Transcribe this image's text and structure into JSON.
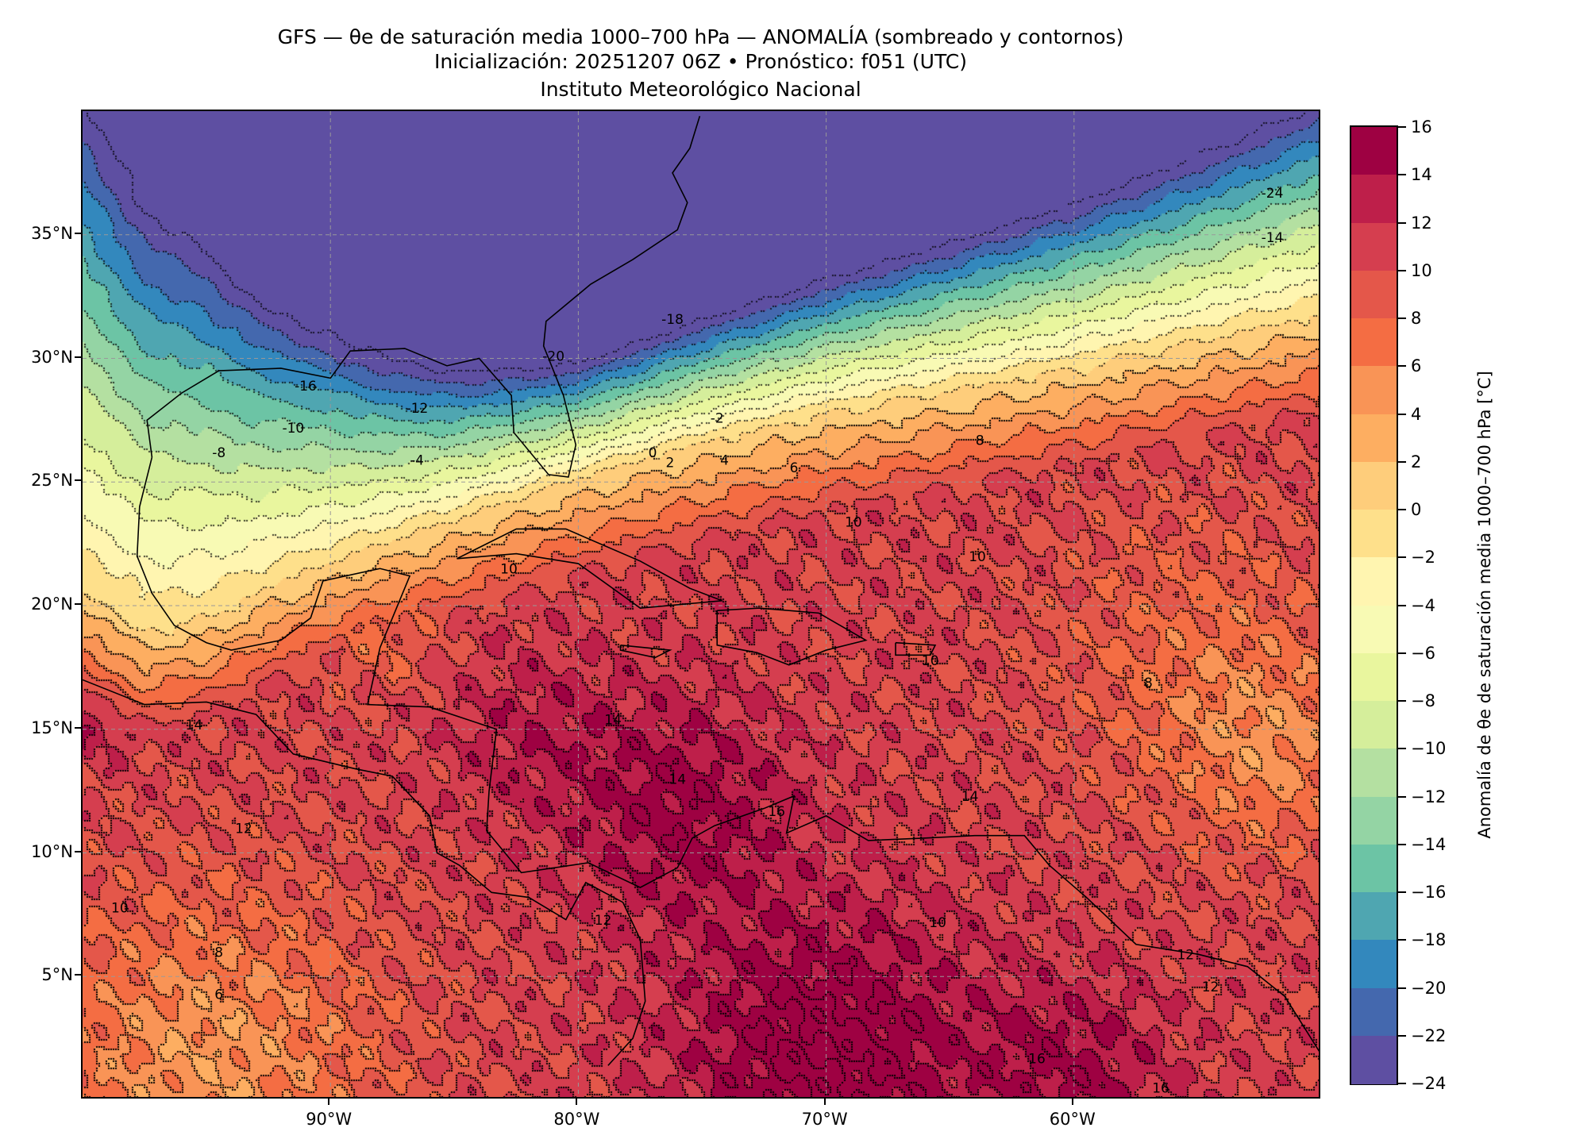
{
  "chart_data": {
    "type": "heatmap",
    "title": "GFS — θe de saturación media 1000–700 hPa — ANOMALÍA (sombreado y contornos)",
    "subtitle": "Inicialización: 20251207 06Z   •   Pronóstico: f051 (UTC)",
    "institution": "Instituto Meteorológico Nacional",
    "xlim": [
      -100,
      -50
    ],
    "ylim": [
      0,
      40
    ],
    "grid": true,
    "x_ticks": [
      {
        "value": -90,
        "label": "90°W"
      },
      {
        "value": -80,
        "label": "80°W"
      },
      {
        "value": -70,
        "label": "70°W"
      },
      {
        "value": -60,
        "label": "60°W"
      }
    ],
    "y_ticks": [
      {
        "value": 35,
        "label": "35°N"
      },
      {
        "value": 30,
        "label": "30°N"
      },
      {
        "value": 25,
        "label": "25°N"
      },
      {
        "value": 20,
        "label": "20°N"
      },
      {
        "value": 15,
        "label": "15°N"
      },
      {
        "value": 10,
        "label": "10°N"
      },
      {
        "value": 5,
        "label": "5°N"
      }
    ],
    "colorbar": {
      "label": "Anomalía de θe de saturación media 1000–700 hPa [°C]",
      "range": [
        -24,
        16
      ],
      "step": 2,
      "ticks": [
        "16",
        "14",
        "12",
        "10",
        "8",
        "6",
        "4",
        "2",
        "0",
        "−2",
        "−4",
        "−6",
        "−8",
        "−10",
        "−12",
        "−14",
        "−16",
        "−18",
        "−20",
        "−22",
        "−24"
      ],
      "colors": [
        "#9e0142",
        "#be1f4a",
        "#d53e4f",
        "#e4574a",
        "#f46d43",
        "#f99456",
        "#fdae61",
        "#fecd7b",
        "#fee08b",
        "#fff5b0",
        "#f8fab4",
        "#e9f69e",
        "#d5ee9b",
        "#b4e0a1",
        "#94d4a4",
        "#6cc4a5",
        "#4fa6b1",
        "#3388bd",
        "#4468ae",
        "#5e4fa2"
      ]
    },
    "contour_labels": [
      {
        "lon": -91,
        "lat": 28.7,
        "text": "-16"
      },
      {
        "lon": -86.5,
        "lat": 27.8,
        "text": "-12"
      },
      {
        "lon": -91.5,
        "lat": 27,
        "text": "-10"
      },
      {
        "lon": -94.5,
        "lat": 26,
        "text": "-8"
      },
      {
        "lon": -86.5,
        "lat": 25.7,
        "text": "-4"
      },
      {
        "lon": -81,
        "lat": 29.9,
        "text": "-20"
      },
      {
        "lon": -76.2,
        "lat": 31.4,
        "text": "-18"
      },
      {
        "lon": -52,
        "lat": 36.5,
        "text": "-24"
      },
      {
        "lon": -52,
        "lat": 34.7,
        "text": "-14"
      },
      {
        "lon": -74.4,
        "lat": 27.4,
        "text": "-2"
      },
      {
        "lon": -77,
        "lat": 26,
        "text": "0"
      },
      {
        "lon": -76.3,
        "lat": 25.6,
        "text": "2"
      },
      {
        "lon": -74.1,
        "lat": 25.7,
        "text": "4"
      },
      {
        "lon": -71.3,
        "lat": 25.4,
        "text": "6"
      },
      {
        "lon": -63.8,
        "lat": 26.5,
        "text": "8"
      },
      {
        "lon": -68.9,
        "lat": 23.2,
        "text": "10"
      },
      {
        "lon": -82.8,
        "lat": 21.3,
        "text": "10"
      },
      {
        "lon": -63.9,
        "lat": 21.8,
        "text": "10"
      },
      {
        "lon": -65.8,
        "lat": 17.6,
        "text": "10"
      },
      {
        "lon": -78.6,
        "lat": 15.2,
        "text": "14"
      },
      {
        "lon": -76,
        "lat": 12.8,
        "text": "14"
      },
      {
        "lon": -72,
        "lat": 11.5,
        "text": "16"
      },
      {
        "lon": -64.2,
        "lat": 12.1,
        "text": "14"
      },
      {
        "lon": -95.5,
        "lat": 15,
        "text": "14"
      },
      {
        "lon": -93.5,
        "lat": 10.8,
        "text": "12"
      },
      {
        "lon": -98.5,
        "lat": 7.6,
        "text": "10"
      },
      {
        "lon": -94.5,
        "lat": 5.8,
        "text": "8"
      },
      {
        "lon": -94.5,
        "lat": 4.1,
        "text": "6"
      },
      {
        "lon": -79,
        "lat": 7.1,
        "text": "12"
      },
      {
        "lon": -65.5,
        "lat": 7,
        "text": "10"
      },
      {
        "lon": -55.5,
        "lat": 5.7,
        "text": "12"
      },
      {
        "lon": -54.5,
        "lat": 4.4,
        "text": "12"
      },
      {
        "lon": -57,
        "lat": 16.7,
        "text": "8"
      },
      {
        "lon": -61.5,
        "lat": 1.5,
        "text": "16"
      },
      {
        "lon": -56.5,
        "lat": 0.3,
        "text": "16"
      }
    ]
  }
}
